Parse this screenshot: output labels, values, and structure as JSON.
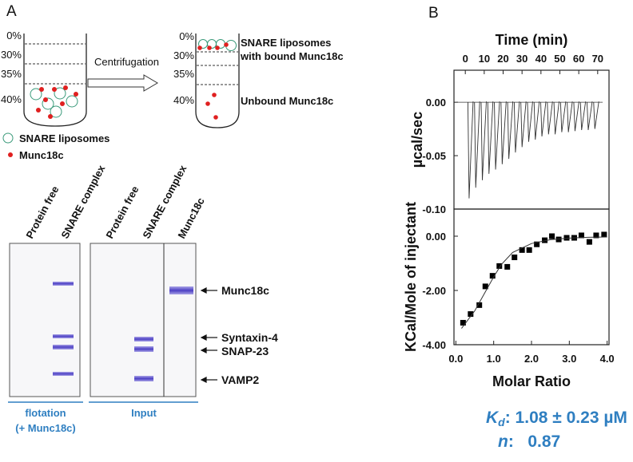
{
  "panel_a": {
    "label": "A",
    "tube_before": {
      "percents": [
        "0%",
        "30%",
        "35%",
        "40%"
      ]
    },
    "arrow_label": "Centrifugation",
    "tube_after": {
      "percents": [
        "0%",
        "30%",
        "35%",
        "40%"
      ],
      "annotations": [
        "SNARE liposomes",
        "with bound Munc18c",
        "Unbound Munc18c"
      ]
    },
    "legend": [
      "SNARE liposomes",
      "Munc18c"
    ],
    "gel": {
      "lanes": [
        "Protein free",
        "SNARE complex",
        "Protein free",
        "SNARE complex",
        "Munc18c"
      ],
      "bands": [
        "Munc18c",
        "Syntaxin-4",
        "SNAP-23",
        "VAMP2"
      ],
      "groups": [
        [
          "flotation",
          "(+ Munc18c)"
        ],
        [
          "Input"
        ]
      ]
    }
  },
  "panel_b": {
    "label": "B",
    "kd": {
      "symbol": "K",
      "subscript": "d",
      "text": ": 1.08 ± 0.23 µM"
    },
    "n": {
      "symbol": "n",
      "text": ":   0.87"
    }
  },
  "chart_data": [
    {
      "type": "peaks",
      "x_label": "Time (min)",
      "y_label": "µcal/sec",
      "color": "#333333",
      "x": [
        2,
        5.5,
        9,
        12.5,
        16,
        19.5,
        23,
        26.5,
        30,
        33.5,
        37,
        40.5,
        44,
        47.5,
        51,
        54.5,
        58,
        61.5,
        65,
        68.5
      ],
      "values": [
        -0.09,
        -0.08,
        -0.073,
        -0.067,
        -0.063,
        -0.058,
        -0.053,
        -0.047,
        -0.042,
        -0.037,
        -0.035,
        -0.032,
        -0.03,
        -0.03,
        -0.028,
        -0.028,
        -0.027,
        -0.026,
        -0.026,
        -0.025
      ],
      "xlim": [
        -6,
        76
      ],
      "ylim": [
        -0.1,
        0.03
      ],
      "xticks": [
        0,
        10,
        20,
        30,
        40,
        50,
        60,
        70
      ],
      "yticks": [
        {
          "value": 0,
          "label": "0.00"
        },
        {
          "value": -0.05,
          "label": "-0.05"
        },
        {
          "value": -0.1,
          "label": "-0.10"
        }
      ]
    },
    {
      "type": "scatter",
      "x_label": "Molar Ratio",
      "y_label": "KCal/Mole of injectant",
      "series": [
        {
          "kind": "scatter",
          "color": "#000000",
          "x": [
            0.19,
            0.39,
            0.62,
            0.78,
            0.97,
            1.15,
            1.36,
            1.55,
            1.75,
            1.94,
            2.14,
            2.35,
            2.54,
            2.72,
            2.93,
            3.13,
            3.32,
            3.53,
            3.71,
            3.92
          ],
          "values": [
            -3.19,
            -2.87,
            -2.54,
            -1.85,
            -1.46,
            -1.1,
            -1.13,
            -0.78,
            -0.51,
            -0.51,
            -0.3,
            -0.15,
            0,
            -0.12,
            -0.06,
            -0.06,
            0.03,
            -0.21,
            0.03,
            0.06
          ]
        },
        {
          "kind": "line",
          "color": "#333333",
          "x": [
            0.15,
            0.5,
            0.8,
            1.0,
            1.2,
            1.5,
            2.0,
            2.5,
            3.0,
            3.5,
            4.0
          ],
          "values": [
            -3.4,
            -2.75,
            -2.0,
            -1.5,
            -1.05,
            -0.6,
            -0.27,
            -0.13,
            -0.07,
            -0.04,
            -0.03
          ]
        }
      ],
      "xlim": [
        -0.05,
        4.05
      ],
      "ylim": [
        -4,
        1
      ],
      "xticks": [
        {
          "value": 0,
          "label": "0.0"
        },
        {
          "value": 1,
          "label": "1.0"
        },
        {
          "value": 2,
          "label": "2.0"
        },
        {
          "value": 3,
          "label": "3.0"
        },
        {
          "value": 4,
          "label": "4.0"
        }
      ],
      "yticks": [
        {
          "value": 0,
          "label": "0.00"
        },
        {
          "value": -2,
          "label": "-2.00"
        },
        {
          "value": -4,
          "label": "-4.00"
        }
      ]
    }
  ]
}
